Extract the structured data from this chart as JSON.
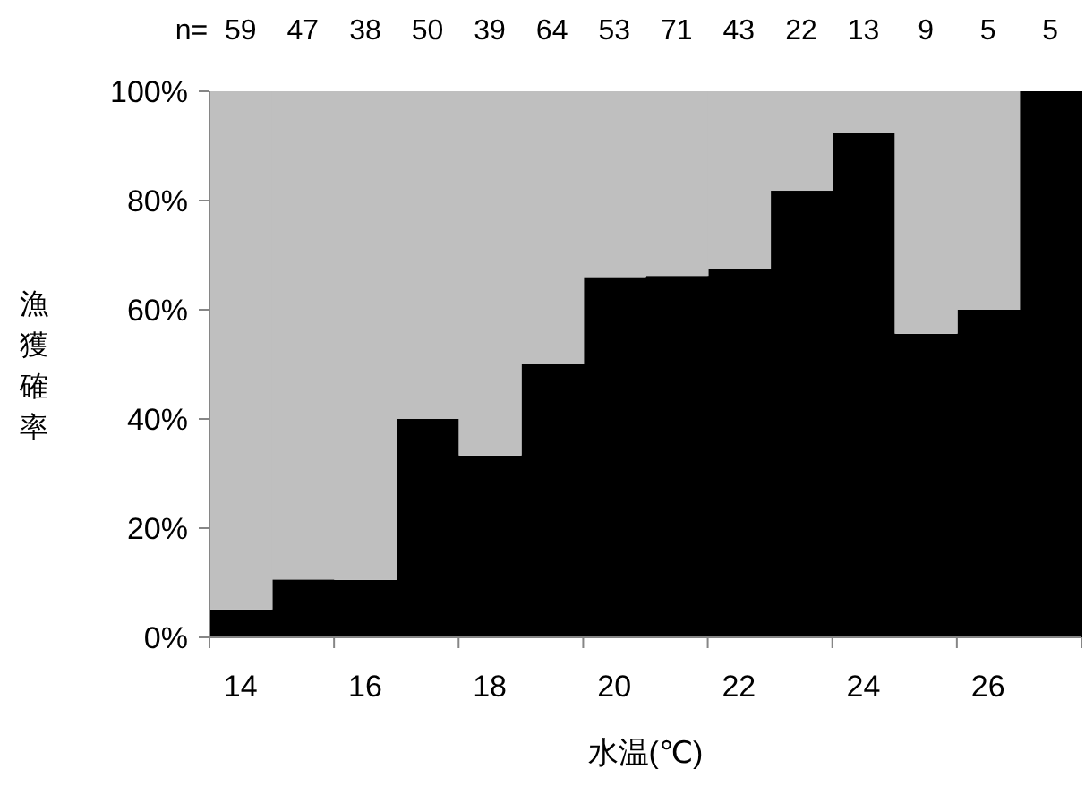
{
  "chart_data": {
    "type": "bar",
    "stacked": true,
    "xlabel": "水温(℃)",
    "ylabel": "漁獲確率",
    "categories": [
      "14",
      null,
      "16",
      null,
      "18",
      null,
      "20",
      null,
      "22",
      null,
      "24",
      null,
      "26",
      null
    ],
    "series": [
      {
        "color": "#000000",
        "values": [
          5.1,
          10.6,
          10.5,
          40,
          33.3,
          50,
          66,
          66.2,
          67.4,
          81.8,
          92.3,
          55.6,
          60,
          100
        ]
      },
      {
        "color": "#bfbfbf",
        "values": [
          94.9,
          89.4,
          89.5,
          60,
          66.7,
          50,
          34,
          33.8,
          32.6,
          18.2,
          7.7,
          44.4,
          40,
          0
        ]
      }
    ],
    "ylim": [
      0,
      100
    ],
    "yticks": [
      {
        "value": 0,
        "label": "0%"
      },
      {
        "value": 20,
        "label": "20%"
      },
      {
        "value": 40,
        "label": "40%"
      },
      {
        "value": 60,
        "label": "60%"
      },
      {
        "value": 80,
        "label": "80%"
      },
      {
        "value": 100,
        "label": "100%"
      }
    ],
    "annotations": [
      "n=",
      "59",
      "47",
      "38",
      "50",
      "39",
      "64",
      "53",
      "71",
      "43",
      "22",
      "13",
      "9",
      "5",
      "5"
    ],
    "grid": false
  }
}
